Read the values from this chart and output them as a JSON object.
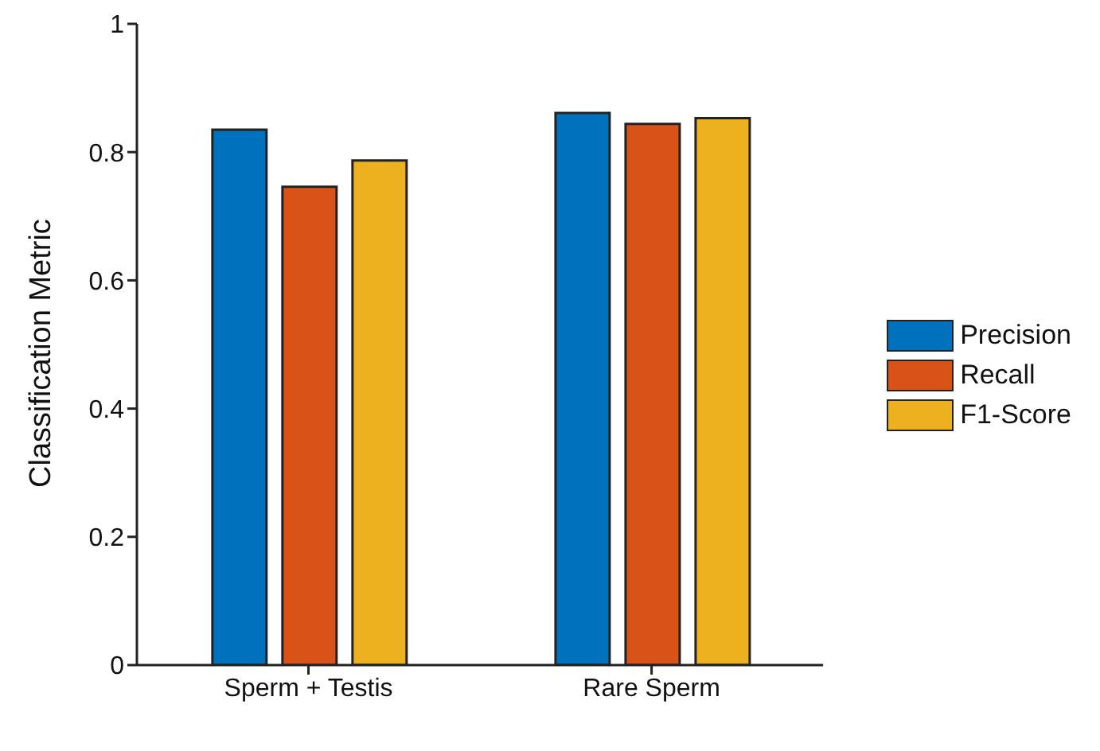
{
  "chart_data": {
    "type": "bar",
    "ylabel": "Classification Metric",
    "categories": [
      "Sperm + Testis",
      "Rare Sperm"
    ],
    "series": [
      {
        "name": "Precision",
        "color": "#0072bd",
        "values": [
          0.835,
          0.861
        ]
      },
      {
        "name": "Recall",
        "color": "#d95319",
        "values": [
          0.746,
          0.844
        ]
      },
      {
        "name": "F1-Score",
        "color": "#edb120",
        "values": [
          0.787,
          0.853
        ]
      }
    ],
    "ylim": [
      0,
      1
    ],
    "yticks": [
      0,
      0.2,
      0.4,
      0.6,
      0.8,
      1
    ],
    "legend": "right",
    "grid": false
  }
}
